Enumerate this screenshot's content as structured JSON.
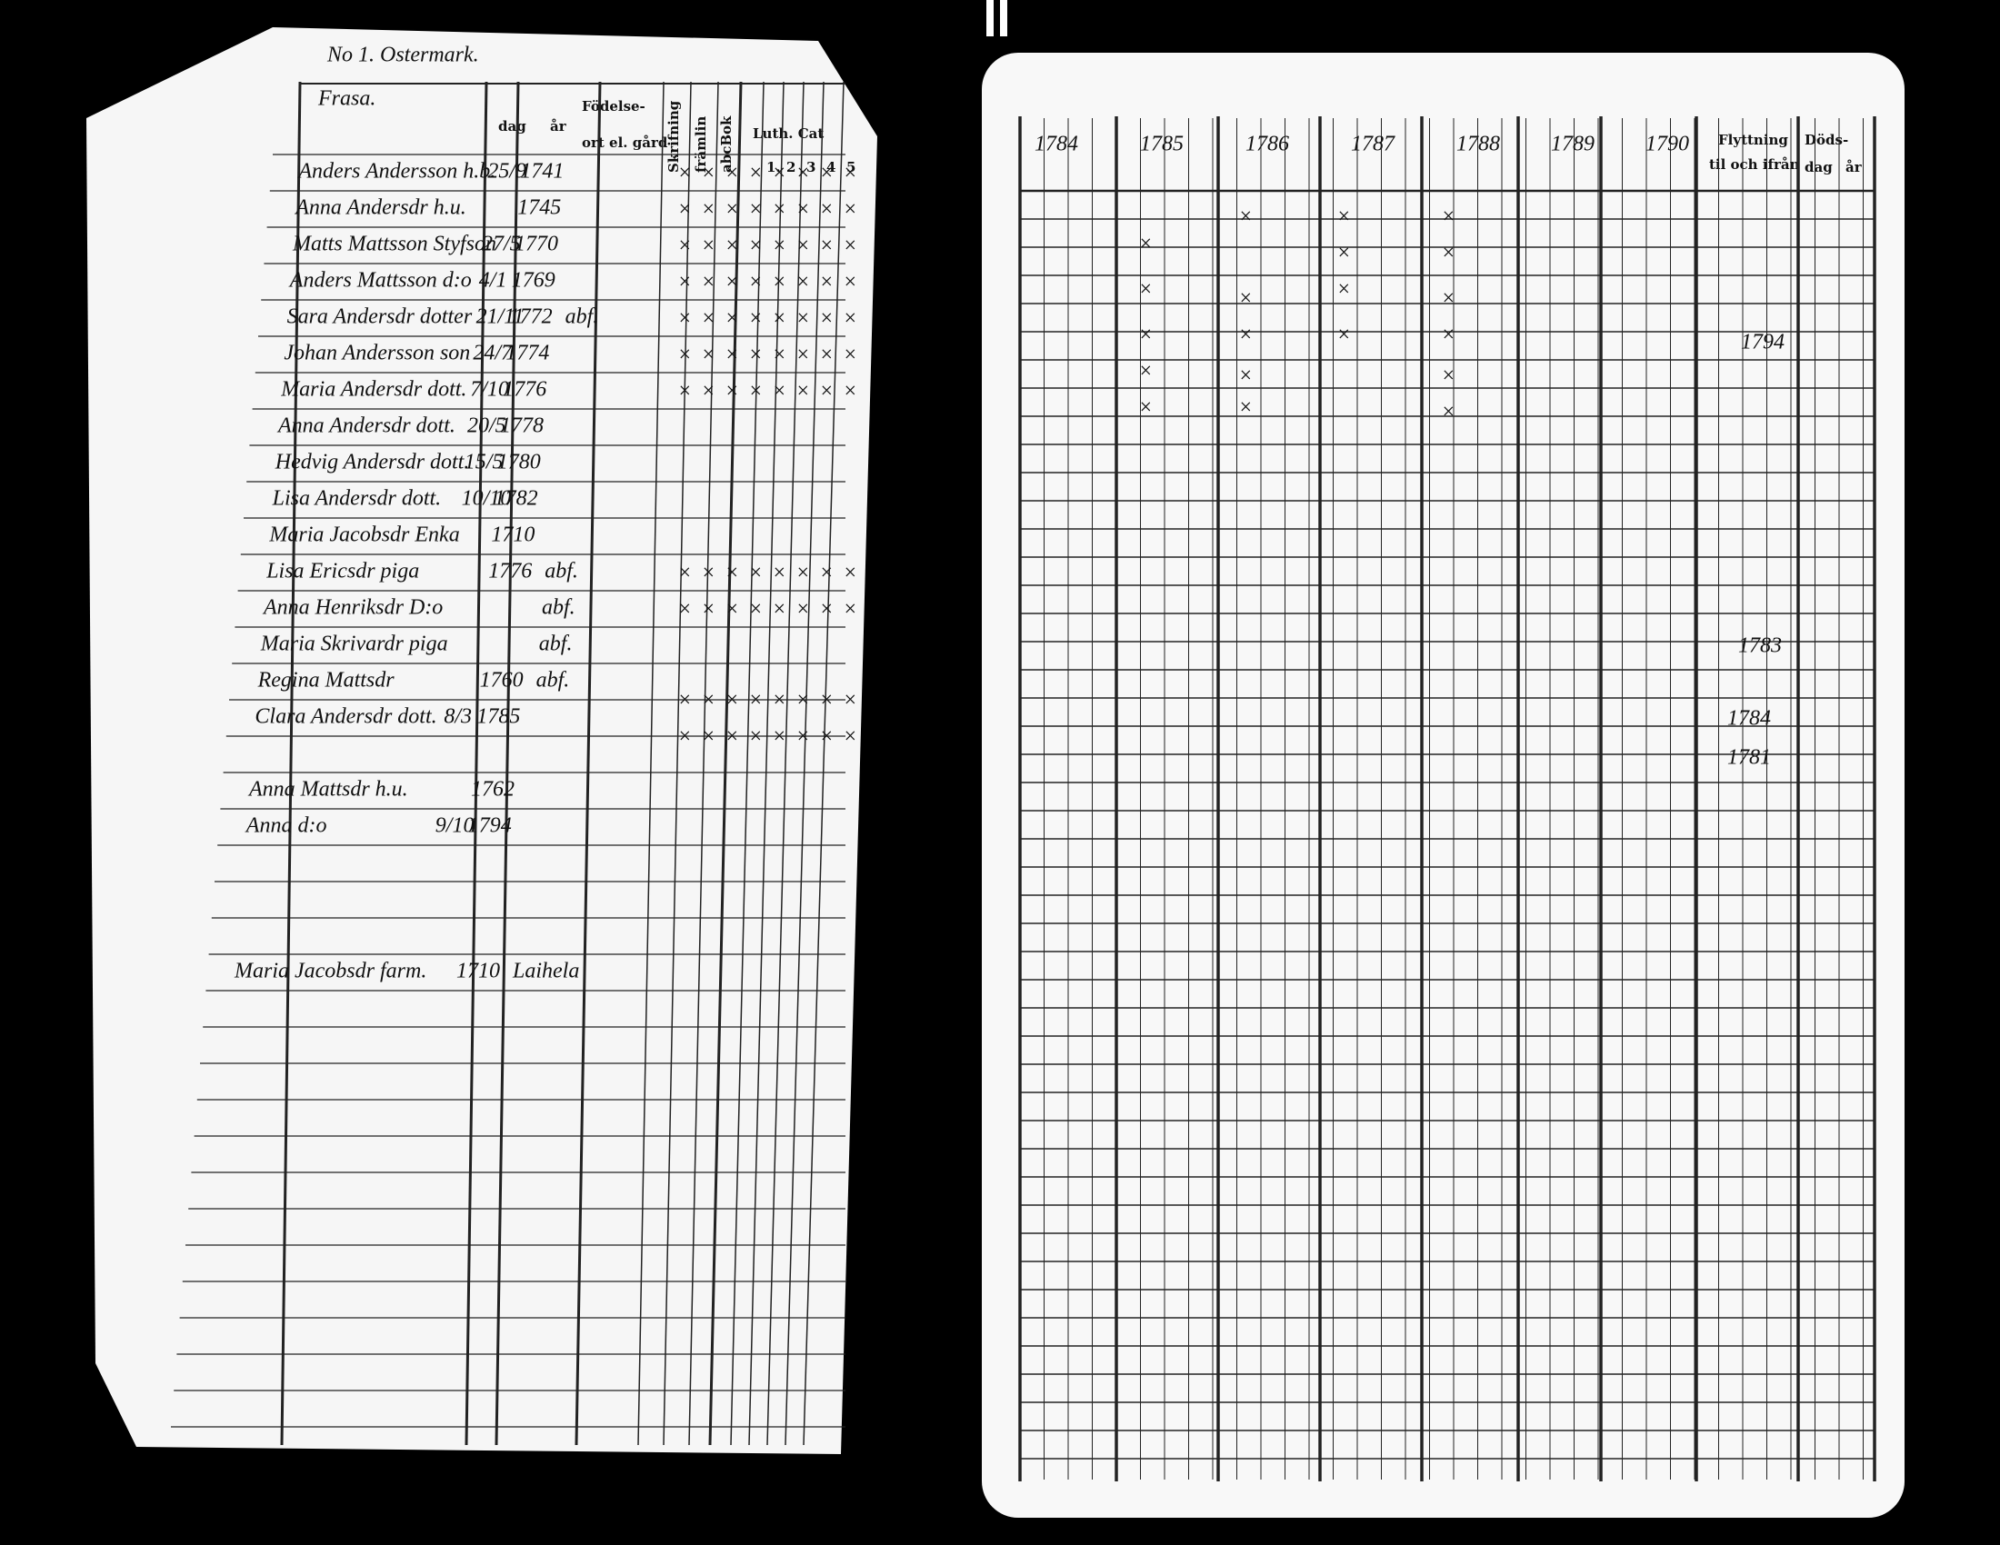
{
  "left_page": {
    "title": "No 1. Ostermark.",
    "headers": {
      "name": "Frasa.",
      "birth": "Födelse-",
      "day": "dag",
      "year": "år",
      "place": "ort el. gård",
      "reading": "Skrifning",
      "foreign": "främlin",
      "abc": "abcBok",
      "catechism": "Luth. Cat",
      "catechism_parts": [
        "1.",
        "2",
        "3",
        "4",
        "5"
      ]
    },
    "rows": [
      {
        "name": "Anders Andersson h.b.",
        "day": "25/9",
        "year": "1741"
      },
      {
        "name": "Anna Andersdr h.u.",
        "year": "1745"
      },
      {
        "name": "Matts Mattsson Styfson",
        "day": "27/5",
        "year": "1770"
      },
      {
        "name": "Anders Mattsson d:o",
        "day": "4/1",
        "year": "1769"
      },
      {
        "name": "Sara Andersdr dotter",
        "day": "21/11",
        "year": "1772",
        "place": "abf."
      },
      {
        "name": "Johan Andersson son",
        "day": "24/7",
        "year": "1774"
      },
      {
        "name": "Maria Andersdr dott.",
        "day": "7/10",
        "year": "1776"
      },
      {
        "name": "Anna Andersdr dott.",
        "day": "20/5",
        "year": "1778"
      },
      {
        "name": "Hedvig Andersdr dott.",
        "day": "15/5",
        "year": "1780"
      },
      {
        "name": "Lisa Andersdr dott.",
        "day": "10/10",
        "year": "1782"
      },
      {
        "name": "Maria Jacobsdr Enka",
        "year": "1710"
      },
      {
        "name": "Lisa Ericsdr piga",
        "year": "1776",
        "place": "abf."
      },
      {
        "name": "Anna Henriksdr D:o",
        "place": "abf."
      },
      {
        "name": "Maria Skrivardr piga",
        "place": "abf."
      },
      {
        "name": "Regina Mattsdr",
        "year": "1760",
        "place": "abf."
      },
      {
        "name": "Clara Andersdr dott.",
        "day": "8/3",
        "year": "1785"
      },
      {
        "name": "Anna Mattsdr h.u.",
        "year": "1762"
      },
      {
        "name": "Anna d:o",
        "day": "9/10",
        "year": "1794"
      },
      {
        "name": "Maria Jacobsdr farm.",
        "year": "1710",
        "place": "Laihela"
      }
    ]
  },
  "right_page": {
    "years": [
      "1784",
      "1785",
      "1786",
      "1787",
      "1788",
      "1789",
      "1790"
    ],
    "moving": "Flyttning",
    "moving_sub": "til och ifrån",
    "death": "Döds-",
    "death_day": "dag",
    "death_year": "år",
    "notes": [
      "1794",
      "1783",
      "1784",
      "1781"
    ]
  }
}
